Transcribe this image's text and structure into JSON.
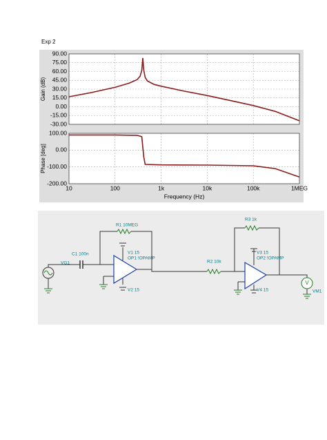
{
  "header": {
    "title": "Exp 2"
  },
  "chart_data": [
    {
      "type": "line",
      "y_label": "Gain (dB)",
      "color": "#8b1a1a",
      "log_x": true,
      "grid": true,
      "show_x_tick_labels": false,
      "xlim": [
        10,
        1000000
      ],
      "xticks": [
        10,
        100,
        1000,
        10000,
        100000,
        1000000
      ],
      "ylim": [
        -30,
        90
      ],
      "yticks": [
        {
          "value": 90,
          "label": "90.00"
        },
        {
          "value": 75,
          "label": "75.00"
        },
        {
          "value": 60,
          "label": "60.00"
        },
        {
          "value": 45,
          "label": "45.00"
        },
        {
          "value": 30,
          "label": "30.00"
        },
        {
          "value": 15,
          "label": "15.00"
        },
        {
          "value": 0,
          "label": "0.00"
        },
        {
          "value": -15,
          "label": "-15.00"
        },
        {
          "value": -30,
          "label": "-30.00"
        }
      ],
      "x": [
        10,
        30,
        100,
        200,
        300,
        350,
        380,
        400,
        420,
        450,
        500,
        700,
        1000,
        3000,
        10000,
        30000,
        100000,
        300000,
        1000000
      ],
      "values": [
        17,
        24,
        33,
        40,
        46,
        52,
        62,
        83,
        62,
        50,
        44,
        38,
        35,
        27,
        19,
        11,
        2,
        -8,
        -24
      ]
    },
    {
      "type": "line",
      "y_label": "Phase [deg]",
      "x_label": "Frequency (Hz)",
      "color": "#8b1a1a",
      "log_x": true,
      "grid": true,
      "show_x_tick_labels": true,
      "xlim": [
        10,
        1000000
      ],
      "xticks": [
        10,
        100,
        {
          "value": 1000,
          "label": "1k"
        },
        {
          "value": 10000,
          "label": "10k"
        },
        {
          "value": 100000,
          "label": "100k"
        },
        {
          "value": 1000000,
          "label": "1MEG"
        }
      ],
      "ylim": [
        -200,
        100
      ],
      "yticks": [
        {
          "value": 100,
          "label": "100.00"
        },
        {
          "value": 0,
          "label": "0.00"
        },
        {
          "value": -100,
          "label": "-100.00"
        },
        {
          "value": -200,
          "label": "-200.00"
        }
      ],
      "x": [
        10,
        100,
        300,
        380,
        420,
        450,
        1000,
        10000,
        100000,
        300000,
        1000000
      ],
      "values": [
        90,
        90,
        88,
        80,
        -40,
        -85,
        -88,
        -89,
        -93,
        -110,
        -160
      ]
    }
  ],
  "circuit": {
    "labels": [
      "R1 10MEG",
      "C1 100n",
      "VG1",
      "V1 15",
      "OP1 !OPAMP",
      "V2 15",
      "R2 10k",
      "R3 1k",
      "V3 15",
      "OP2 !OPAMP",
      "V4 15",
      "VM1"
    ]
  }
}
